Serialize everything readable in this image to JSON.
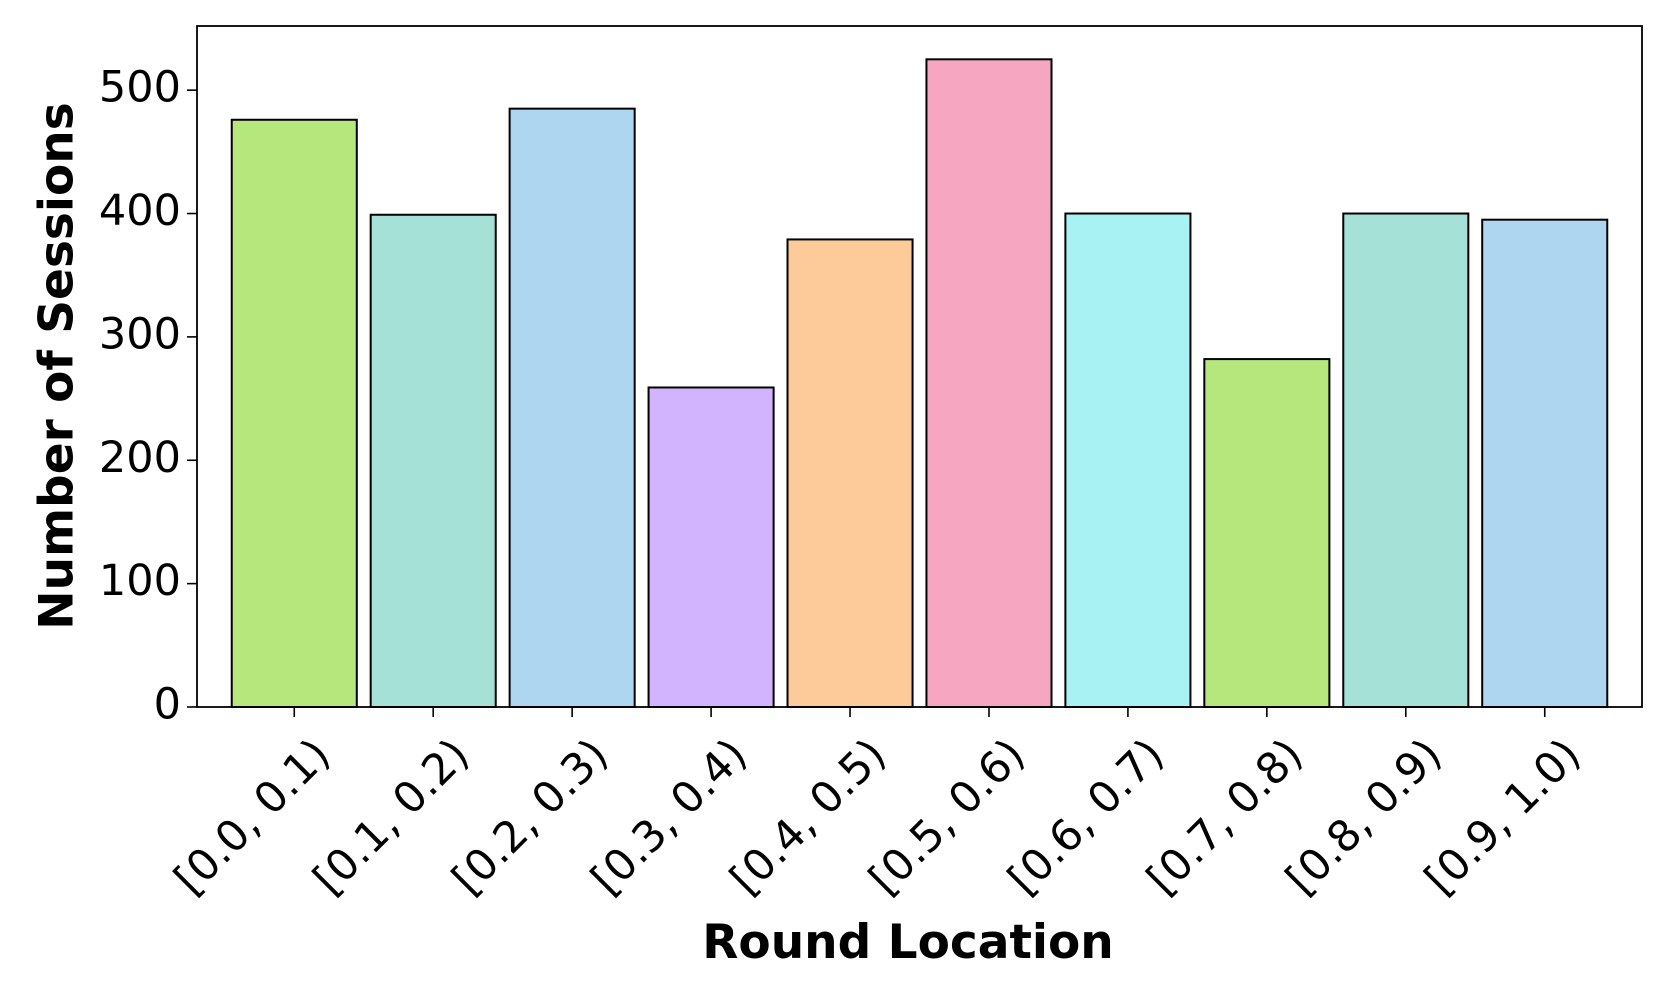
{
  "chart_data": {
    "type": "bar",
    "xlabel": "Round Location",
    "ylabel": "Number of Sessions",
    "categories": [
      "[0.0, 0.1)",
      "[0.1, 0.2)",
      "[0.2, 0.3)",
      "[0.3, 0.4)",
      "[0.4, 0.5)",
      "[0.5, 0.6)",
      "[0.6, 0.7)",
      "[0.7, 0.8)",
      "[0.8, 0.9)",
      "[0.9, 1.0)"
    ],
    "values": [
      476,
      399,
      485,
      259,
      379,
      525,
      400,
      282,
      400,
      395
    ],
    "colors": [
      "#b5e77c",
      "#a6e1d8",
      "#aed6f0",
      "#d2b3fd",
      "#fdca9a",
      "#f6a6c1",
      "#a8f2f3",
      "#b5e77c",
      "#a6e1d8",
      "#aed6f0"
    ],
    "ylim": [
      0,
      552
    ],
    "yticks": [
      0,
      100,
      200,
      300,
      400,
      500
    ]
  }
}
